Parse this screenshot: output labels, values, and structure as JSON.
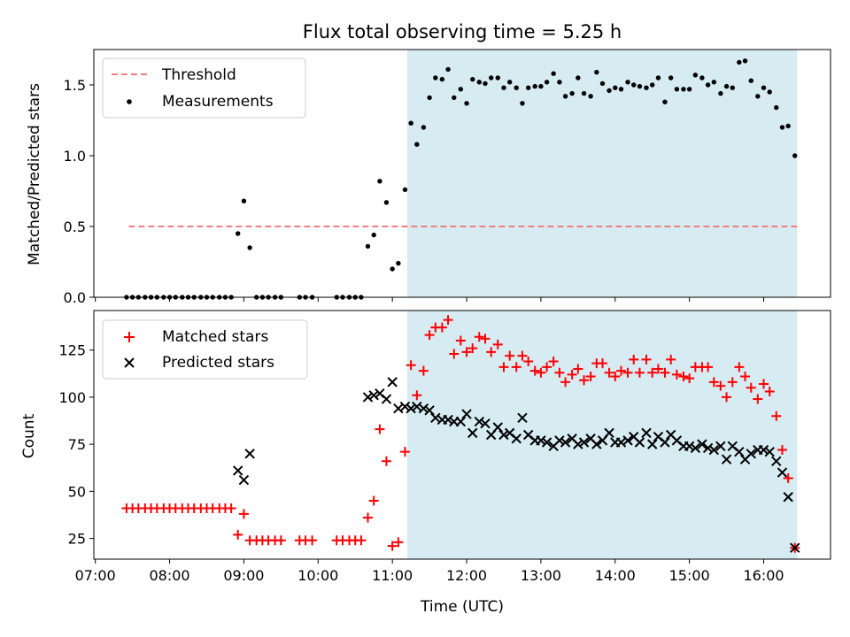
{
  "chart_data": [
    {
      "type": "scatter",
      "title": "Flux total observing time = 5.25 h",
      "xlabel": "",
      "ylabel": "Matched/Predicted stars",
      "xlim": [
        6.98,
        16.9
      ],
      "ylim": [
        0.0,
        1.75
      ],
      "yticks": [
        0.0,
        0.5,
        1.0,
        1.5
      ],
      "ytick_labels": [
        "0.0",
        "0.5",
        "1.0",
        "1.5"
      ],
      "shaded_span": {
        "x_start": 11.2,
        "x_end": 16.45,
        "color": "#add8e6"
      },
      "legend": {
        "position": "top-left",
        "entries": [
          "Threshold",
          "Measurements"
        ]
      },
      "series": [
        {
          "name": "Threshold",
          "kind": "dashed-line",
          "color": "#f08080",
          "x": [
            7.45,
            16.45
          ],
          "y": [
            0.5,
            0.5
          ]
        },
        {
          "name": "Measurements",
          "kind": "dot",
          "color": "#000000",
          "x": [
            7.42,
            7.5,
            7.58,
            7.67,
            7.75,
            7.83,
            7.92,
            8.0,
            8.08,
            8.17,
            8.25,
            8.33,
            8.42,
            8.5,
            8.58,
            8.67,
            8.75,
            8.83,
            8.92,
            9.0,
            9.08,
            9.17,
            9.25,
            9.33,
            9.42,
            9.5,
            9.75,
            9.83,
            9.92,
            10.25,
            10.33,
            10.42,
            10.5,
            10.58,
            10.67,
            10.75,
            10.83,
            10.92,
            11.0,
            11.08,
            11.17,
            11.25,
            11.33,
            11.42,
            11.5,
            11.58,
            11.67,
            11.75,
            11.83,
            11.92,
            12.0,
            12.08,
            12.17,
            12.25,
            12.33,
            12.42,
            12.5,
            12.58,
            12.67,
            12.75,
            12.83,
            12.92,
            13.0,
            13.08,
            13.17,
            13.25,
            13.33,
            13.42,
            13.5,
            13.58,
            13.67,
            13.75,
            13.83,
            13.92,
            14.0,
            14.08,
            14.17,
            14.25,
            14.33,
            14.42,
            14.5,
            14.58,
            14.67,
            14.75,
            14.83,
            14.92,
            15.0,
            15.08,
            15.17,
            15.25,
            15.33,
            15.42,
            15.5,
            15.58,
            15.67,
            15.75,
            15.83,
            15.92,
            16.0,
            16.08,
            16.17,
            16.25,
            16.33,
            16.42
          ],
          "y": [
            0,
            0,
            0,
            0,
            0,
            0,
            0,
            0,
            0,
            0,
            0,
            0,
            0,
            0,
            0,
            0,
            0,
            0,
            0.45,
            0.68,
            0.35,
            0,
            0,
            0,
            0,
            0,
            0,
            0,
            0,
            0,
            0,
            0,
            0,
            0,
            0.36,
            0.44,
            0.82,
            0.67,
            0.2,
            0.24,
            0.76,
            1.23,
            1.08,
            1.2,
            1.41,
            1.55,
            1.54,
            1.61,
            1.41,
            1.47,
            1.37,
            1.54,
            1.52,
            1.51,
            1.55,
            1.55,
            1.48,
            1.52,
            1.48,
            1.37,
            1.48,
            1.49,
            1.49,
            1.52,
            1.58,
            1.52,
            1.42,
            1.44,
            1.55,
            1.44,
            1.42,
            1.59,
            1.51,
            1.46,
            1.48,
            1.47,
            1.52,
            1.5,
            1.49,
            1.48,
            1.5,
            1.55,
            1.38,
            1.55,
            1.47,
            1.47,
            1.47,
            1.57,
            1.55,
            1.5,
            1.52,
            1.44,
            1.49,
            1.48,
            1.66,
            1.67,
            1.53,
            1.42,
            1.48,
            1.45,
            1.34,
            1.2,
            1.21,
            1.0
          ]
        }
      ]
    },
    {
      "type": "scatter",
      "title": "",
      "xlabel": "Time (UTC)",
      "ylabel": "Count",
      "xlim": [
        6.98,
        16.9
      ],
      "ylim": [
        14,
        146
      ],
      "yticks": [
        25,
        50,
        75,
        100,
        125
      ],
      "ytick_labels": [
        "25",
        "50",
        "75",
        "100",
        "125"
      ],
      "xticks": [
        7,
        8,
        9,
        10,
        11,
        12,
        13,
        14,
        15,
        16
      ],
      "xtick_labels": [
        "07:00",
        "08:00",
        "09:00",
        "10:00",
        "11:00",
        "12:00",
        "13:00",
        "14:00",
        "15:00",
        "16:00"
      ],
      "shaded_span": {
        "x_start": 11.2,
        "x_end": 16.45,
        "color": "#add8e6"
      },
      "legend": {
        "position": "top-left",
        "entries": [
          "Matched stars",
          "Predicted stars"
        ]
      },
      "series": [
        {
          "name": "Matched stars",
          "kind": "plus",
          "color": "#ff0000",
          "x": [
            7.42,
            7.5,
            7.58,
            7.67,
            7.75,
            7.83,
            7.92,
            8.0,
            8.08,
            8.17,
            8.25,
            8.33,
            8.42,
            8.5,
            8.58,
            8.67,
            8.75,
            8.83,
            8.92,
            9.0,
            9.08,
            9.17,
            9.25,
            9.33,
            9.42,
            9.5,
            9.75,
            9.83,
            9.92,
            10.25,
            10.33,
            10.42,
            10.5,
            10.58,
            10.67,
            10.75,
            10.83,
            10.92,
            11.0,
            11.08,
            11.17,
            11.25,
            11.33,
            11.42,
            11.5,
            11.58,
            11.67,
            11.75,
            11.83,
            11.92,
            12.0,
            12.08,
            12.17,
            12.25,
            12.33,
            12.42,
            12.5,
            12.58,
            12.67,
            12.75,
            12.83,
            12.92,
            13.0,
            13.08,
            13.17,
            13.25,
            13.33,
            13.42,
            13.5,
            13.58,
            13.67,
            13.75,
            13.83,
            13.92,
            14.0,
            14.08,
            14.17,
            14.25,
            14.33,
            14.42,
            14.5,
            14.58,
            14.67,
            14.75,
            14.83,
            14.92,
            15.0,
            15.08,
            15.17,
            15.25,
            15.33,
            15.42,
            15.5,
            15.58,
            15.67,
            15.75,
            15.83,
            15.92,
            16.0,
            16.08,
            16.17,
            16.25,
            16.33,
            16.42
          ],
          "y": [
            41,
            41,
            41,
            41,
            41,
            41,
            41,
            41,
            41,
            41,
            41,
            41,
            41,
            41,
            41,
            41,
            41,
            41,
            27,
            38,
            24,
            24,
            24,
            24,
            24,
            24,
            24,
            24,
            24,
            24,
            24,
            24,
            24,
            24,
            36,
            45,
            83,
            66,
            21,
            23,
            71,
            117,
            101,
            114,
            133,
            137,
            137,
            141,
            123,
            130,
            124,
            126,
            132,
            131,
            124,
            128,
            116,
            122,
            116,
            122,
            119,
            114,
            113,
            116,
            119,
            113,
            108,
            112,
            115,
            109,
            111,
            118,
            118,
            113,
            111,
            114,
            113,
            120,
            113,
            120,
            113,
            115,
            113,
            120,
            112,
            111,
            110,
            116,
            116,
            116,
            108,
            106,
            100,
            108,
            116,
            111,
            105,
            99,
            107,
            103,
            90,
            72,
            57,
            20
          ]
        },
        {
          "name": "Predicted stars",
          "kind": "x",
          "color": "#000000",
          "x": [
            8.92,
            9.0,
            9.08,
            10.67,
            10.75,
            10.83,
            10.92,
            11.0,
            11.08,
            11.17,
            11.25,
            11.33,
            11.42,
            11.5,
            11.58,
            11.67,
            11.75,
            11.83,
            11.92,
            12.0,
            12.08,
            12.17,
            12.25,
            12.33,
            12.42,
            12.5,
            12.58,
            12.67,
            12.75,
            12.83,
            12.92,
            13.0,
            13.08,
            13.17,
            13.25,
            13.33,
            13.42,
            13.5,
            13.58,
            13.67,
            13.75,
            13.83,
            13.92,
            14.0,
            14.08,
            14.17,
            14.25,
            14.33,
            14.42,
            14.5,
            14.58,
            14.67,
            14.75,
            14.83,
            14.92,
            15.0,
            15.08,
            15.17,
            15.25,
            15.33,
            15.42,
            15.5,
            15.58,
            15.67,
            15.75,
            15.83,
            15.92,
            16.0,
            16.08,
            16.17,
            16.25,
            16.33,
            16.42
          ],
          "y": [
            61,
            56,
            70,
            100,
            101,
            102,
            99,
            108,
            94,
            95,
            94,
            95,
            94,
            93,
            89,
            88,
            88,
            87,
            87,
            91,
            81,
            87,
            86,
            80,
            84,
            80,
            81,
            78,
            89,
            80,
            77,
            77,
            76,
            74,
            77,
            76,
            78,
            75,
            76,
            78,
            75,
            77,
            81,
            76,
            76,
            77,
            79,
            76,
            81,
            75,
            79,
            76,
            80,
            77,
            74,
            74,
            73,
            75,
            73,
            72,
            74,
            67,
            74,
            71,
            67,
            70,
            72,
            72,
            71,
            66,
            60,
            47,
            20
          ]
        }
      ]
    }
  ]
}
